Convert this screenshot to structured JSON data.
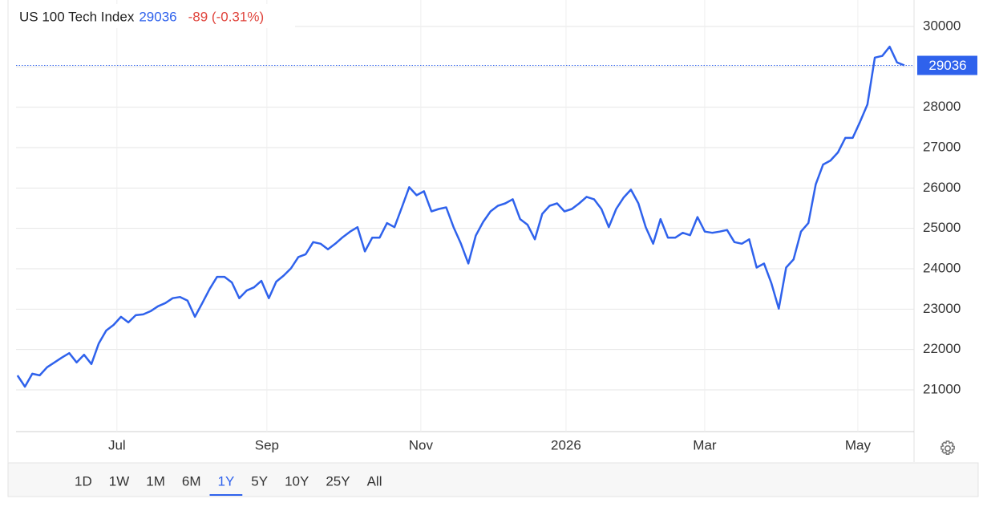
{
  "chart_data": {
    "type": "line",
    "title": "US 100 Tech Index",
    "price": 29036,
    "change": "-89 (-0.31%)",
    "series": [
      {
        "name": "US 100 Tech Index",
        "color": "#2f62ec",
        "values": [
          21358,
          21080,
          21400,
          21360,
          21560,
          21680,
          21800,
          21910,
          21680,
          21870,
          21640,
          22150,
          22470,
          22610,
          22810,
          22670,
          22850,
          22870,
          22950,
          23070,
          23150,
          23270,
          23300,
          23210,
          22810,
          23150,
          23500,
          23800,
          23800,
          23660,
          23270,
          23460,
          23540,
          23700,
          23270,
          23680,
          23830,
          24010,
          24290,
          24360,
          24660,
          24620,
          24480,
          24620,
          24780,
          24920,
          25030,
          24430,
          24770,
          24770,
          25130,
          25030,
          25520,
          26020,
          25820,
          25920,
          25420,
          25480,
          25520,
          25030,
          24620,
          24130,
          24820,
          25160,
          25420,
          25560,
          25620,
          25720,
          25230,
          25090,
          24730,
          25360,
          25560,
          25620,
          25420,
          25480,
          25620,
          25780,
          25720,
          25480,
          25030,
          25480,
          25760,
          25960,
          25620,
          25030,
          24620,
          25230,
          24770,
          24770,
          24890,
          24830,
          25280,
          24920,
          24890,
          24920,
          24960,
          24660,
          24620,
          24730,
          24030,
          24130,
          23640,
          23010,
          24030,
          24230,
          24920,
          25130,
          26090,
          26580,
          26680,
          26880,
          27240,
          27240,
          27640,
          28070,
          29230,
          29270,
          29500,
          29110,
          29036
        ]
      }
    ],
    "xlim": [
      -0.2,
      121.3
    ],
    "xticks": [
      {
        "value": 13.45,
        "label": "Jul"
      },
      {
        "value": 33.74,
        "label": "Sep"
      },
      {
        "value": 54.57,
        "label": "Nov"
      },
      {
        "value": 74.21,
        "label": "2026"
      },
      {
        "value": 92.98,
        "label": "Mar"
      },
      {
        "value": 113.7,
        "label": "May"
      }
    ],
    "ylim": [
      19967,
      30457
    ],
    "yticks": [
      21000,
      22000,
      23000,
      24000,
      25000,
      26000,
      27000,
      28000,
      29000,
      30000
    ],
    "grid": true,
    "ranges": [
      "1D",
      "1W",
      "1M",
      "6M",
      "1Y",
      "5Y",
      "10Y",
      "25Y",
      "All"
    ],
    "active_range": "1Y"
  }
}
